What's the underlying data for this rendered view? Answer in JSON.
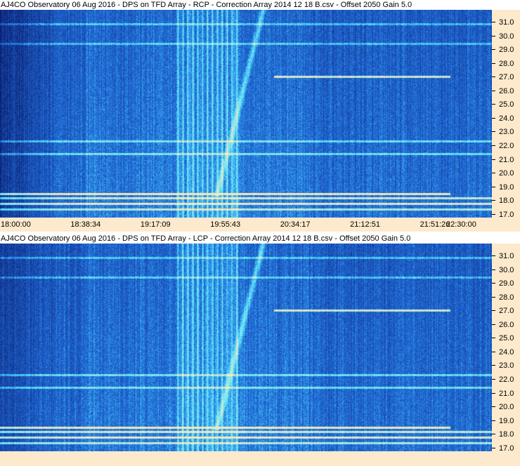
{
  "panels": [
    {
      "title": "AJ4CO Observatory 06 Aug 2016  -  DPS on TFD Array  -  RCP  -  Correction Array 2014 12 18 B.csv  -  Offset 2050  Gain 5.0",
      "polarization": "RCP"
    },
    {
      "title": "AJ4CO Observatory 06 Aug 2016  -  DPS on TFD Array  -  LCP  -  Correction Array 2014 12 18 B.csv  -  Offset 2050  Gain 5.0",
      "polarization": "LCP"
    }
  ],
  "frequency_axis": {
    "labels": [
      "31.0",
      "30.0",
      "29.0",
      "28.0",
      "27.0",
      "26.0",
      "25.0",
      "24.0",
      "23.0",
      "22.0",
      "21.0",
      "20.0",
      "19.0",
      "18.0",
      "17.0"
    ]
  },
  "time_axis": {
    "labels": [
      "18:00:00",
      "18:38:34",
      "19:17:09",
      "19:55:43",
      "20:34:17",
      "21:12:51",
      "21:51:26",
      "22:30:00"
    ]
  },
  "colors": {
    "axis_background": "#fde9cc",
    "spectrogram_base": "#1a4fbf",
    "spectrogram_dark": "#0a1f6e",
    "burst_cyan": "#7fe8ff",
    "rfi_line": "#ffe0c0"
  }
}
